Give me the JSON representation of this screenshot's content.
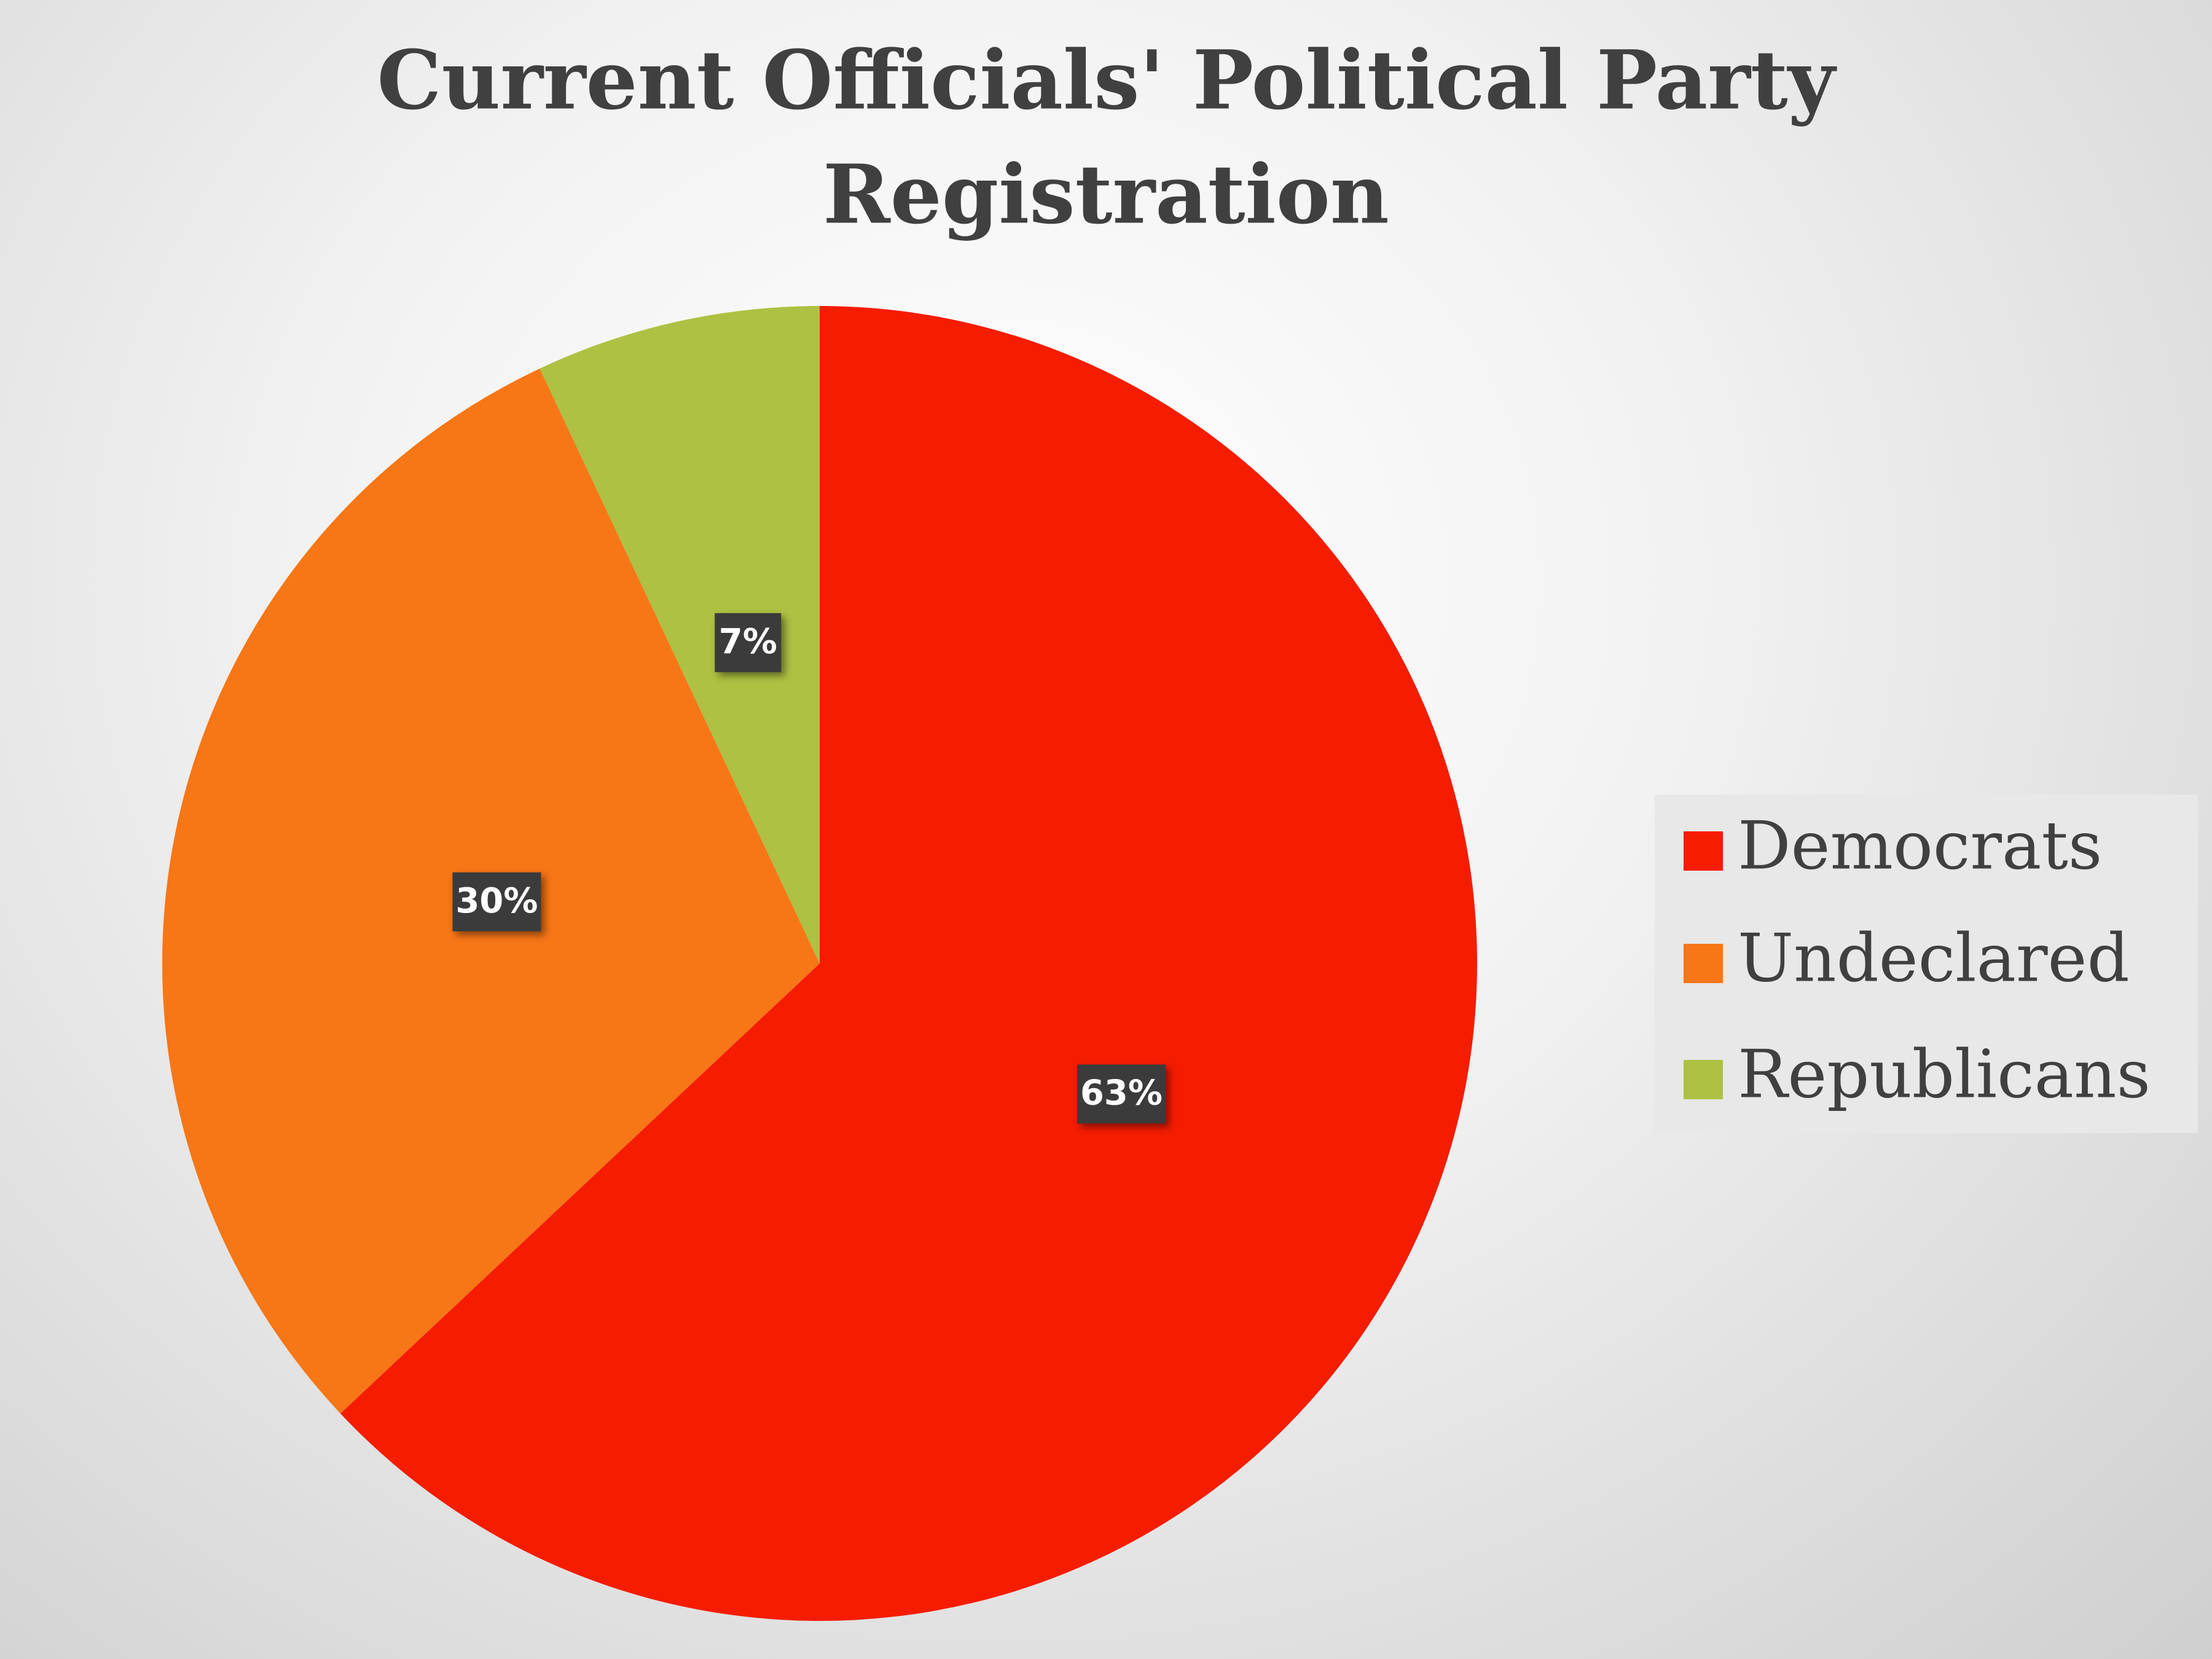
{
  "chart_data": {
    "type": "pie",
    "title": "Current Officials' Political Party Registration",
    "categories": [
      "Democrats",
      "Undeclared",
      "Republicans"
    ],
    "values": [
      63,
      30,
      7
    ],
    "value_labels": [
      "63%",
      "30%",
      "7%"
    ],
    "colors": [
      "#f51c00",
      "#f77616",
      "#aec142"
    ],
    "legend": "right"
  }
}
